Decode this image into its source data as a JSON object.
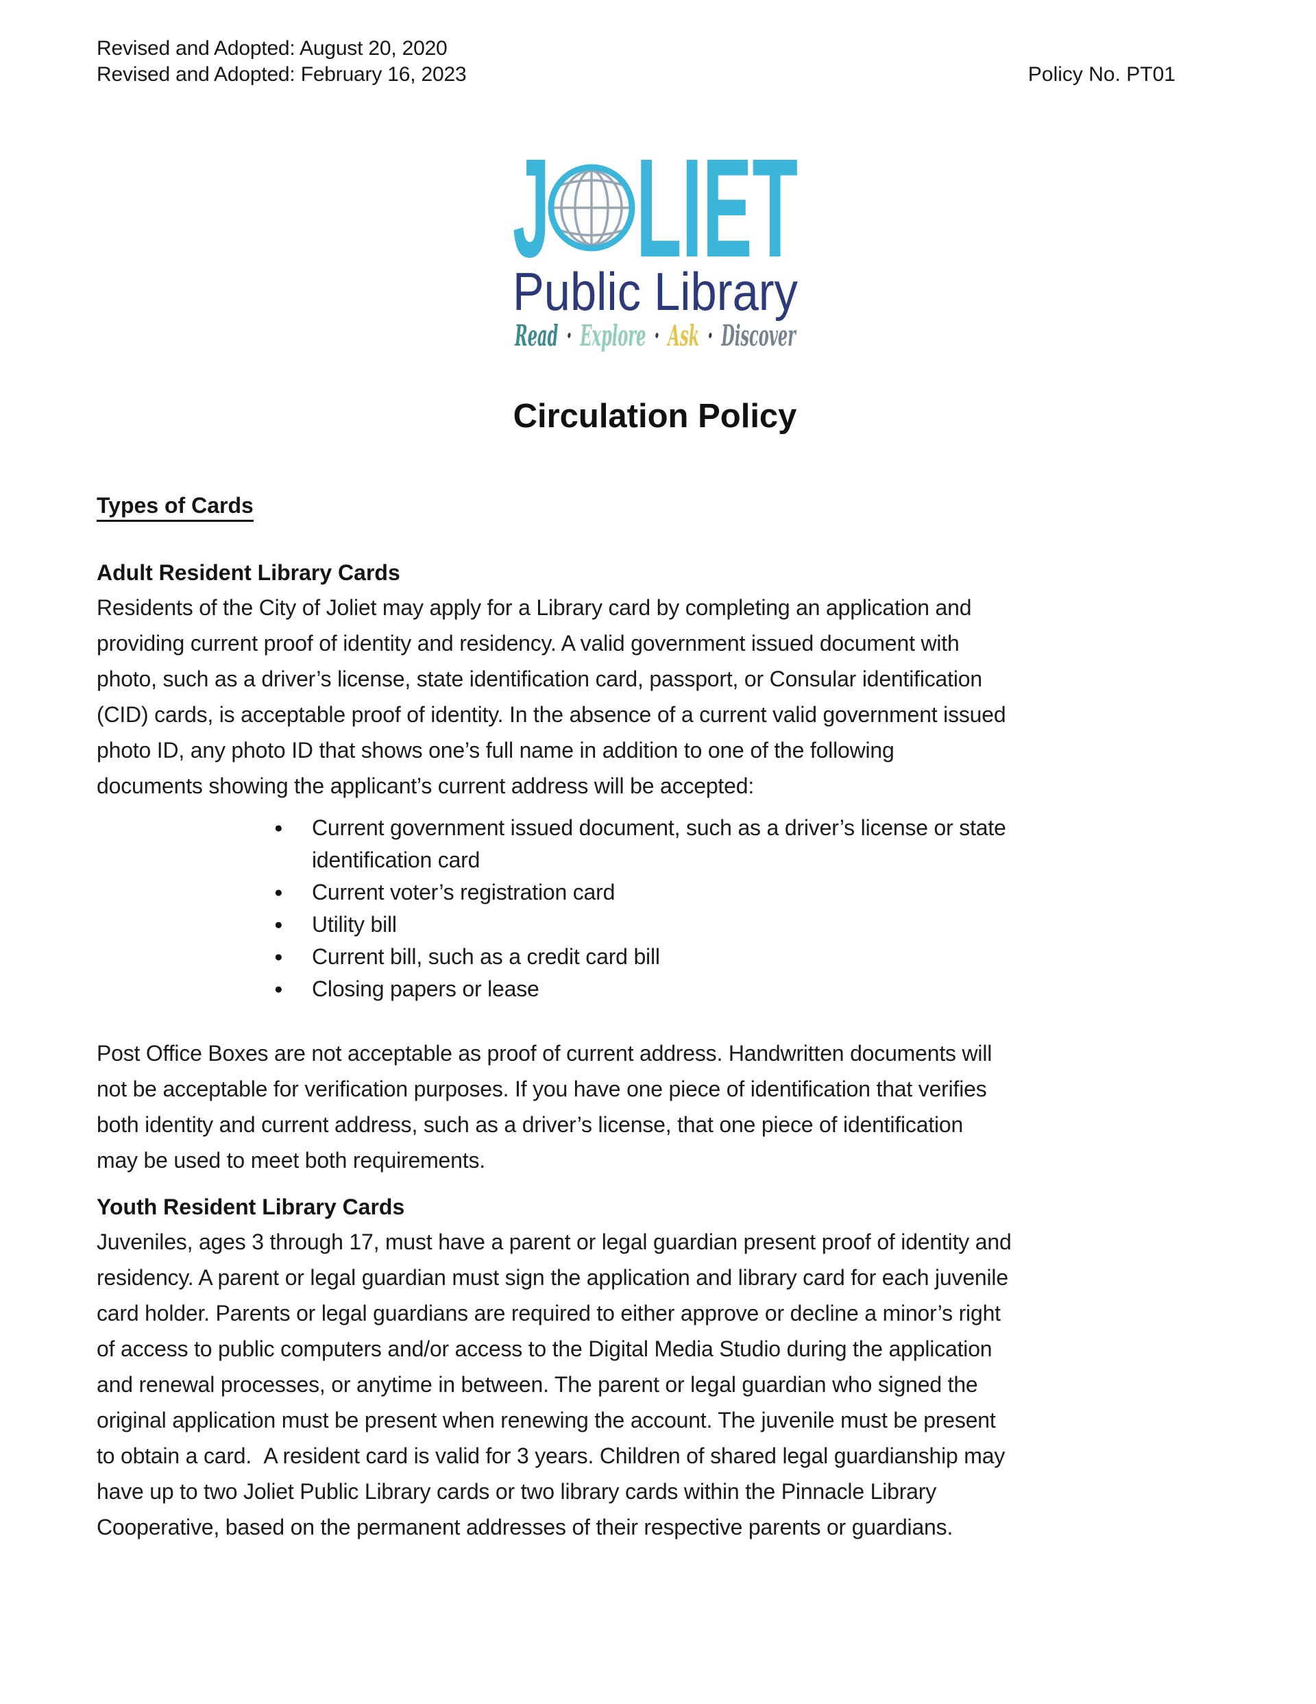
{
  "header": {
    "revisions": [
      "Revised and Adopted: August 20, 2020",
      "Revised and Adopted: February 16, 2023"
    ],
    "policy_no": "Policy No. PT01"
  },
  "logo": {
    "word_start": "J",
    "word_end": "LIET",
    "subtitle": "Public Library",
    "tagline": {
      "words": [
        "Read",
        "Explore",
        "Ask",
        "Discover"
      ],
      "separator": "·",
      "colors": [
        "#3a8a90",
        "#90cdbb",
        "#e5c44c",
        "#76838f"
      ]
    },
    "colors": {
      "joliet": "#3bb5da",
      "globe_grid": "#97a6b2",
      "subtitle": "#2d3a79",
      "dot": "#2c3a52"
    }
  },
  "title": "Circulation Policy",
  "content": {
    "section_heading": "Types of Cards",
    "adult": {
      "heading": "Adult Resident Library Cards",
      "lines": [
        "Residents of the City of Joliet may apply for a Library card by completing an application and",
        "providing current proof of identity and residency. A valid government issued document with",
        "photo, such as a driver’s license, state identification card, passport, or Consular identification",
        "(CID) cards, is acceptable proof of identity. In the absence of a current valid government issued",
        "photo ID, any photo ID that shows one’s full name in addition to one of the following",
        "documents showing the applicant’s current address will be accepted:"
      ],
      "bullets": [
        [
          "Current government issued document, such as a driver’s license or state",
          "identification card"
        ],
        [
          "Current voter’s registration card"
        ],
        [
          "Utility bill"
        ],
        [
          "Current bill, such as a credit card bill"
        ],
        [
          "Closing papers or lease"
        ]
      ]
    },
    "po_note": {
      "lines": [
        "Post Office Boxes are not acceptable as proof of current address. Handwritten documents will",
        "not be acceptable for verification purposes. If you have one piece of identification that verifies",
        "both identity and current address, such as a driver’s license, that one piece of identification",
        "may be used to meet both requirements."
      ]
    },
    "youth": {
      "heading": "Youth Resident Library Cards",
      "lines": [
        "Juveniles, ages 3 through 17, must have a parent or legal guardian present proof of identity and",
        "residency. A parent or legal guardian must sign the application and library card for each juvenile",
        "card holder. Parents or legal guardians are required to either approve or decline a minor’s right",
        "of access to public computers and/or access to the Digital Media Studio during the application",
        "and renewal processes, or anytime in between. The parent or legal guardian who signed the",
        "original application must be present when renewing the account. The juvenile must be present",
        "to obtain a card.  A resident card is valid for 3 years. Children of shared legal guardianship may",
        "have up to two Joliet Public Library cards or two library cards within the Pinnacle Library",
        "Cooperative, based on the permanent addresses of their respective parents or guardians."
      ]
    }
  }
}
